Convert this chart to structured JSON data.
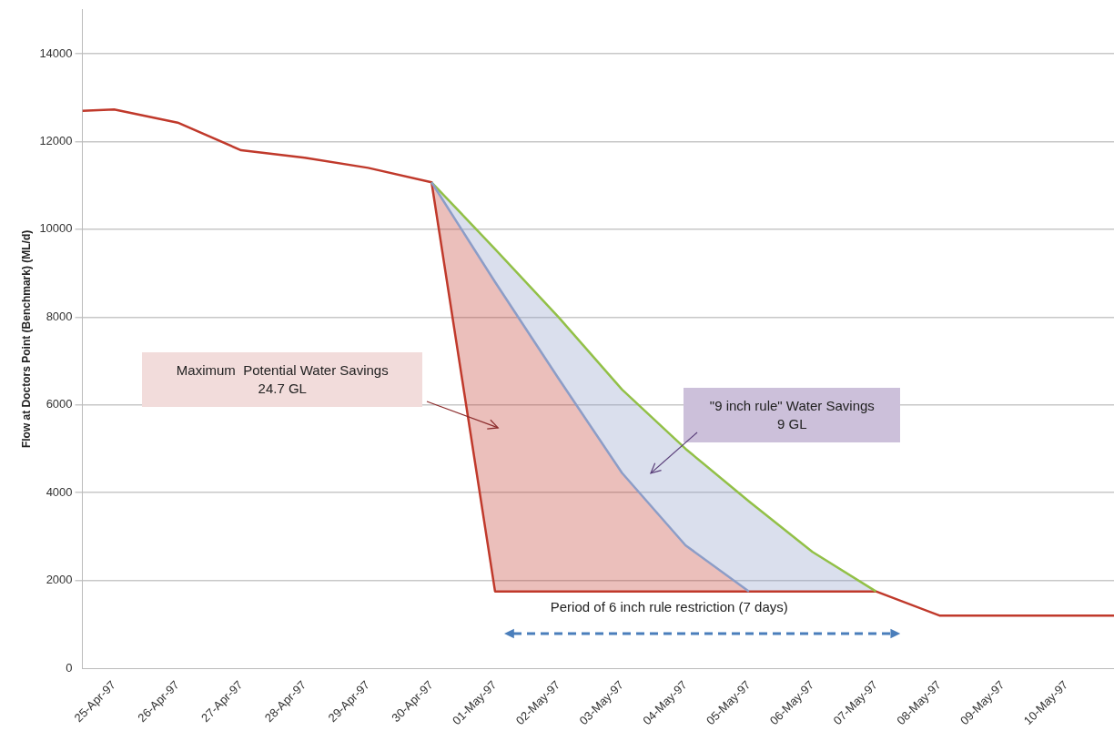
{
  "chart_data": {
    "type": "line",
    "ylabel": "Flow at Doctors Point (Benchmark) (ML/d)",
    "xlim": [
      "1997-04-24T12:00",
      "1997-05-10T18:00"
    ],
    "xticks": [
      {
        "value": "1997-04-25",
        "label": "25-Apr-97"
      },
      {
        "value": "1997-04-26",
        "label": "26-Apr-97"
      },
      {
        "value": "1997-04-27",
        "label": "27-Apr-97"
      },
      {
        "value": "1997-04-28",
        "label": "28-Apr-97"
      },
      {
        "value": "1997-04-29",
        "label": "29-Apr-97"
      },
      {
        "value": "1997-04-30",
        "label": "30-Apr-97"
      },
      {
        "value": "1997-05-01",
        "label": "01-May-97"
      },
      {
        "value": "1997-05-02",
        "label": "02-May-97"
      },
      {
        "value": "1997-05-03",
        "label": "03-May-97"
      },
      {
        "value": "1997-05-04",
        "label": "04-May-97"
      },
      {
        "value": "1997-05-05",
        "label": "05-May-97"
      },
      {
        "value": "1997-05-06",
        "label": "06-May-97"
      },
      {
        "value": "1997-05-07",
        "label": "07-May-97"
      },
      {
        "value": "1997-05-08",
        "label": "08-May-97"
      },
      {
        "value": "1997-05-09",
        "label": "09-May-97"
      },
      {
        "value": "1997-05-10",
        "label": "10-May-97"
      }
    ],
    "ylim": [
      0,
      15000
    ],
    "yticks": [
      0,
      2000,
      4000,
      6000,
      8000,
      10000,
      12000,
      14000
    ],
    "grid": "y",
    "legend": false,
    "marker": "none",
    "line_style": "solid",
    "series": [
      {
        "color": "#8c9dc7",
        "x": [
          "1997-04-30",
          "1997-05-01",
          "1997-05-02",
          "1997-05-03",
          "1997-05-04",
          "1997-05-05",
          "1997-05-06",
          "1997-05-07"
        ],
        "values": [
          11070,
          8800,
          6600,
          4450,
          2800,
          1750,
          null,
          null
        ],
        "lower": [
          11070,
          8800,
          6600,
          4450,
          2800,
          1750,
          1750,
          1750
        ],
        "upper": [
          11070,
          9550,
          8000,
          6350,
          5000,
          3800,
          2650,
          1750
        ]
      },
      {
        "color": "#92c047",
        "x": [
          "1997-04-30",
          "1997-05-01",
          "1997-05-02",
          "1997-05-03",
          "1997-05-04",
          "1997-05-05",
          "1997-05-06",
          "1997-05-07"
        ],
        "values": [
          11070,
          9550,
          8000,
          6350,
          5000,
          3800,
          2650,
          1750
        ]
      },
      {
        "color": "#c0392b",
        "x": [
          "1997-04-24T12:00",
          "1997-04-25",
          "1997-04-26",
          "1997-04-27",
          "1997-04-28",
          "1997-04-29",
          "1997-04-30",
          "1997-05-01",
          "1997-05-02",
          "1997-05-03",
          "1997-05-04",
          "1997-05-05",
          "1997-05-06",
          "1997-05-07",
          "1997-05-08",
          "1997-05-09",
          "1997-05-10",
          "1997-05-10T18:00"
        ],
        "values": [
          12700,
          12730,
          12430,
          11800,
          11630,
          11400,
          11070,
          1750,
          1750,
          1750,
          1750,
          1750,
          1750,
          1750,
          1200,
          1200,
          1200,
          1200
        ],
        "lower": [
          null,
          null,
          null,
          null,
          null,
          null,
          11070,
          1750,
          1750,
          1750,
          1750,
          1750,
          null,
          null,
          null,
          null,
          null,
          null
        ],
        "upper": [
          null,
          null,
          null,
          null,
          null,
          null,
          11070,
          8800,
          6600,
          4450,
          2800,
          1750,
          null,
          null,
          null,
          null,
          null,
          null
        ]
      }
    ],
    "annotations": [
      "Maximum  Potential Water Savings\n24.7 GL",
      "\"9 inch rule\" Water Savings\n9 GL",
      "Period of 6 inch rule restriction (7 days)"
    ]
  }
}
